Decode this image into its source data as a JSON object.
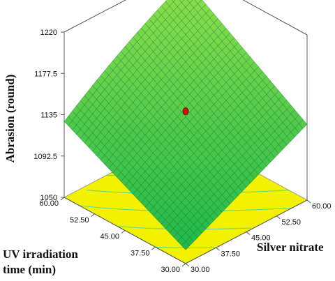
{
  "chart_data": {
    "type": "surface3d",
    "xlabel": "Silver nitrate",
    "ylabel_lines": [
      "UV irradiation",
      "time (min)"
    ],
    "zlabel": "Abrasion (round)",
    "x_ticks": [
      "30.00",
      "37.50",
      "45.00",
      "52.50",
      "60.00"
    ],
    "y_ticks": [
      "30.00",
      "37.50",
      "45.00",
      "52.50",
      "60.00"
    ],
    "z_ticks": [
      "1050",
      "1092.5",
      "1135",
      "1177.5",
      "1220"
    ],
    "xlim": [
      30,
      60
    ],
    "ylim": [
      30,
      60
    ],
    "zlim": [
      1050,
      1220
    ],
    "surface_corners": {
      "x30_y30": 1064,
      "x60_y30": 1128,
      "x30_y60": 1128,
      "x60_y60": 1208
    },
    "design_point": {
      "x": 45,
      "y": 45,
      "z": 1140
    },
    "floor_contour_levels": [
      1080,
      1100,
      1120,
      1140,
      1160
    ],
    "colors": {
      "surface_low": "#1fb84c",
      "surface_high": "#8fe04a",
      "floor": "#f2f200",
      "floor_contour": "#3fd1b0",
      "design_point": "#cc1111"
    }
  }
}
